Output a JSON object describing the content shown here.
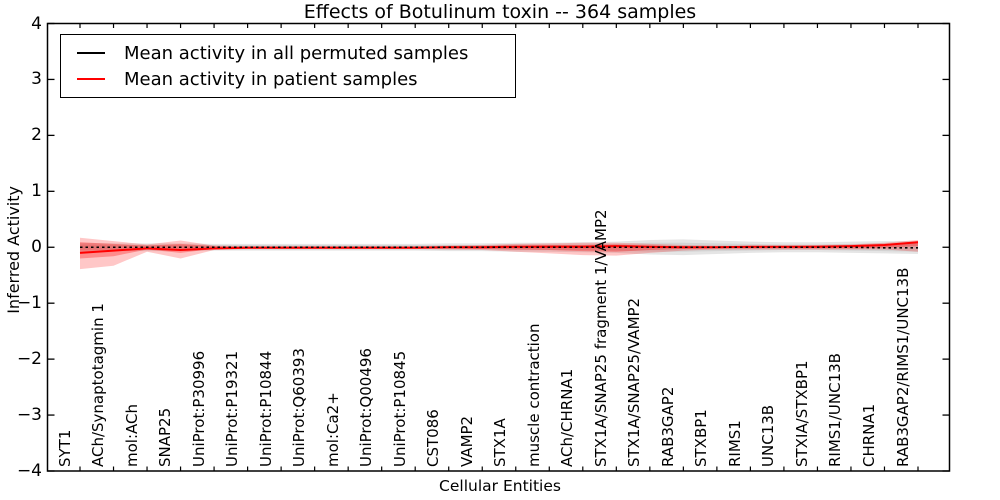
{
  "title": "Effects of Botulinum toxin -- 364 samples",
  "axes": {
    "ylabel": "Inferred Activity",
    "xlabel": "Cellular Entities"
  },
  "legend": {
    "position": "upper left",
    "items": [
      {
        "label": "Mean activity in all permuted samples",
        "color": "#000000"
      },
      {
        "label": "Mean activity in patient samples",
        "color": "#ff0000"
      }
    ]
  },
  "chart_data": {
    "type": "line",
    "title": "Effects of Botulinum toxin -- 364 samples",
    "xlabel": "Cellular Entities",
    "ylabel": "Inferred Activity",
    "ylim": [
      -4,
      4
    ],
    "yticks": [
      4,
      3,
      2,
      1,
      0,
      -1,
      -2,
      -3,
      -4
    ],
    "ytick_labels": [
      "4",
      "3",
      "2",
      "1",
      "0",
      "−1",
      "−2",
      "−3",
      "−4"
    ],
    "grid": false,
    "legend_position": "upper left",
    "x_tick_rotation": 90,
    "categories": [
      "SYT1",
      "ACh/Synaptotagmin 1",
      "mol:ACh",
      "SNAP25",
      "UniProt:P30996",
      "UniProt:P19321",
      "UniProt:P10844",
      "UniProt:Q60393",
      "mol:Ca2+",
      "UniProt:Q00496",
      "UniProt:P10845",
      "CST086",
      "VAMP2",
      "STX1A",
      "muscle contraction",
      "ACh/CHRNA1",
      "STX1A/SNAP25 fragment 1/VAMP2",
      "STX1A/SNAP25/VAMP2",
      "RAB3GAP2",
      "STXBP1",
      "RIMS1",
      "UNC13B",
      "STXIA/STXBP1",
      "RIMS1/UNC13B",
      "CHRNA1",
      "RAB3GAP2/RIMS1/UNC13B"
    ],
    "series": [
      {
        "name": "Mean activity in all permuted samples",
        "color": "#000000",
        "style": "dashed",
        "values": [
          0,
          0,
          0,
          0,
          0,
          0,
          0,
          0,
          0,
          0,
          0,
          0,
          0,
          0,
          0,
          0,
          0,
          0,
          0,
          0,
          0,
          0,
          0,
          0,
          -0.01,
          -0.01
        ]
      },
      {
        "name": "Mean activity in patient samples",
        "color": "#ff0000",
        "style": "solid",
        "values": [
          -0.1,
          -0.06,
          -0.02,
          -0.05,
          -0.02,
          -0.01,
          -0.01,
          -0.01,
          -0.01,
          -0.01,
          -0.01,
          0,
          0,
          0.01,
          0.01,
          0.01,
          0.02,
          0.01,
          0,
          0,
          0.01,
          0.01,
          0.01,
          0.02,
          0.04,
          0.09
        ]
      }
    ],
    "bands": [
      {
        "name": "permuted-spread-outer",
        "color": "rgba(0,0,0,0.10)",
        "upper": [
          0.08,
          0.07,
          0.07,
          0.07,
          0.06,
          0.06,
          0.06,
          0.06,
          0.06,
          0.06,
          0.06,
          0.07,
          0.07,
          0.08,
          0.08,
          0.09,
          0.1,
          0.13,
          0.14,
          0.12,
          0.1,
          0.09,
          0.09,
          0.1,
          0.11,
          0.11
        ],
        "lower": [
          -0.08,
          -0.07,
          -0.07,
          -0.07,
          -0.06,
          -0.06,
          -0.06,
          -0.06,
          -0.06,
          -0.06,
          -0.06,
          -0.07,
          -0.07,
          -0.08,
          -0.08,
          -0.09,
          -0.1,
          -0.13,
          -0.14,
          -0.12,
          -0.1,
          -0.09,
          -0.09,
          -0.1,
          -0.11,
          -0.12
        ]
      },
      {
        "name": "permuted-spread-inner",
        "color": "rgba(0,0,0,0.08)",
        "upper": [
          0.05,
          0.04,
          0.04,
          0.04,
          0.04,
          0.04,
          0.04,
          0.04,
          0.04,
          0.04,
          0.04,
          0.04,
          0.04,
          0.05,
          0.05,
          0.05,
          0.06,
          0.08,
          0.08,
          0.07,
          0.06,
          0.05,
          0.05,
          0.06,
          0.07,
          0.07
        ],
        "lower": [
          -0.05,
          -0.04,
          -0.04,
          -0.04,
          -0.04,
          -0.04,
          -0.04,
          -0.04,
          -0.04,
          -0.04,
          -0.04,
          -0.04,
          -0.04,
          -0.05,
          -0.05,
          -0.05,
          -0.06,
          -0.08,
          -0.08,
          -0.07,
          -0.06,
          -0.05,
          -0.05,
          -0.06,
          -0.07,
          -0.08
        ]
      },
      {
        "name": "patient-spread-outer",
        "color": "rgba(255,0,0,0.22)",
        "upper": [
          0.17,
          0.11,
          0.05,
          0.12,
          0.03,
          0.02,
          0.02,
          0.02,
          0.02,
          0.02,
          0.02,
          0.03,
          0.04,
          0.06,
          0.07,
          0.08,
          0.08,
          0.06,
          0.04,
          0.03,
          0.03,
          0.03,
          0.04,
          0.05,
          0.08,
          0.13
        ],
        "lower": [
          -0.39,
          -0.33,
          -0.08,
          -0.2,
          -0.05,
          -0.03,
          -0.03,
          -0.03,
          -0.03,
          -0.03,
          -0.03,
          -0.04,
          -0.05,
          -0.08,
          -0.11,
          -0.14,
          -0.15,
          -0.1,
          -0.06,
          -0.04,
          -0.04,
          -0.04,
          -0.04,
          -0.04,
          -0.04,
          -0.08
        ]
      },
      {
        "name": "patient-spread-inner",
        "color": "rgba(255,0,0,0.30)",
        "upper": [
          0.09,
          0.06,
          0.03,
          0.06,
          0.02,
          0.01,
          0.01,
          0.01,
          0.01,
          0.01,
          0.01,
          0.02,
          0.02,
          0.03,
          0.04,
          0.04,
          0.05,
          0.03,
          0.02,
          0.02,
          0.02,
          0.02,
          0.02,
          0.03,
          0.05,
          0.11
        ],
        "lower": [
          -0.2,
          -0.16,
          -0.04,
          -0.1,
          -0.03,
          -0.02,
          -0.02,
          -0.02,
          -0.02,
          -0.02,
          -0.02,
          -0.02,
          -0.03,
          -0.04,
          -0.05,
          -0.07,
          -0.08,
          -0.05,
          -0.03,
          -0.02,
          -0.02,
          -0.02,
          -0.02,
          -0.02,
          -0.01,
          0.02
        ]
      }
    ]
  }
}
